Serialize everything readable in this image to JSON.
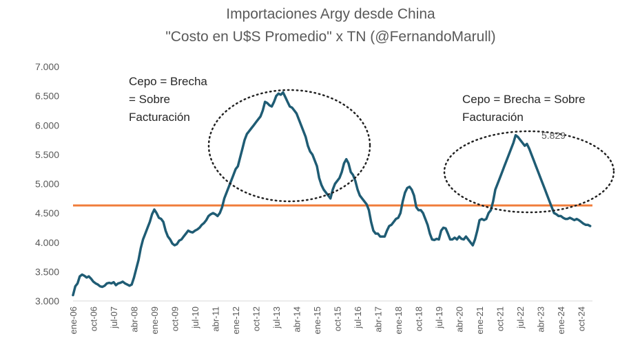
{
  "chart_data": {
    "type": "line",
    "title_line1": "Importaciones  Argy desde China",
    "title_line2": "\"Costo en U$S Promedio\" x TN (@FernandoMarull)",
    "xlabel": "",
    "ylabel": "",
    "ylim": [
      3000,
      7000
    ],
    "y_ticks": [
      3000,
      3500,
      4000,
      4500,
      5000,
      5500,
      6000,
      6500,
      7000
    ],
    "y_tick_labels": [
      "3.000",
      "3.500",
      "4.000",
      "4.500",
      "5.000",
      "5.500",
      "6.000",
      "6.500",
      "7.000"
    ],
    "x_tick_labels": [
      "ene-06",
      "oct-06",
      "jul-07",
      "abr-08",
      "ene-09",
      "oct-09",
      "jul-10",
      "abr-11",
      "ene-12",
      "oct-12",
      "jul-13",
      "abr-14",
      "ene-15",
      "oct-15",
      "jul-16",
      "abr-17",
      "ene-18",
      "oct-18",
      "jul-19",
      "abr-20",
      "ene-21",
      "oct-21",
      "jul-22",
      "abr-23",
      "ene-24",
      "oct-24"
    ],
    "x_start": "2006-01",
    "x_end": "2025-03",
    "grid": false,
    "legend": "none",
    "colors": {
      "series": "#1f5c74",
      "reference": "#f07c3a",
      "text": "#595959"
    },
    "series": [
      {
        "points": [
          [
            "2006-01",
            3100
          ],
          [
            "2006-02",
            3250
          ],
          [
            "2006-03",
            3300
          ],
          [
            "2006-04",
            3420
          ],
          [
            "2006-05",
            3450
          ],
          [
            "2006-06",
            3430
          ],
          [
            "2006-07",
            3400
          ],
          [
            "2006-08",
            3420
          ],
          [
            "2006-09",
            3380
          ],
          [
            "2006-10",
            3330
          ],
          [
            "2006-11",
            3300
          ],
          [
            "2006-12",
            3280
          ],
          [
            "2007-01",
            3250
          ],
          [
            "2007-02",
            3240
          ],
          [
            "2007-03",
            3260
          ],
          [
            "2007-04",
            3300
          ],
          [
            "2007-05",
            3310
          ],
          [
            "2007-06",
            3300
          ],
          [
            "2007-07",
            3320
          ],
          [
            "2007-08",
            3270
          ],
          [
            "2007-09",
            3300
          ],
          [
            "2007-10",
            3310
          ],
          [
            "2007-11",
            3330
          ],
          [
            "2007-12",
            3300
          ],
          [
            "2008-01",
            3280
          ],
          [
            "2008-02",
            3260
          ],
          [
            "2008-03",
            3280
          ],
          [
            "2008-04",
            3400
          ],
          [
            "2008-05",
            3550
          ],
          [
            "2008-06",
            3700
          ],
          [
            "2008-07",
            3900
          ],
          [
            "2008-08",
            4050
          ],
          [
            "2008-09",
            4150
          ],
          [
            "2008-10",
            4250
          ],
          [
            "2008-11",
            4350
          ],
          [
            "2008-12",
            4480
          ],
          [
            "2009-01",
            4560
          ],
          [
            "2009-02",
            4500
          ],
          [
            "2009-03",
            4420
          ],
          [
            "2009-04",
            4400
          ],
          [
            "2009-05",
            4350
          ],
          [
            "2009-06",
            4200
          ],
          [
            "2009-07",
            4100
          ],
          [
            "2009-08",
            4050
          ],
          [
            "2009-09",
            3980
          ],
          [
            "2009-10",
            3950
          ],
          [
            "2009-11",
            3970
          ],
          [
            "2009-12",
            4030
          ],
          [
            "2010-01",
            4050
          ],
          [
            "2010-02",
            4100
          ],
          [
            "2010-03",
            4150
          ],
          [
            "2010-04",
            4200
          ],
          [
            "2010-05",
            4180
          ],
          [
            "2010-06",
            4170
          ],
          [
            "2010-07",
            4200
          ],
          [
            "2010-08",
            4220
          ],
          [
            "2010-09",
            4250
          ],
          [
            "2010-10",
            4300
          ],
          [
            "2010-11",
            4330
          ],
          [
            "2010-12",
            4380
          ],
          [
            "2011-01",
            4450
          ],
          [
            "2011-02",
            4480
          ],
          [
            "2011-03",
            4500
          ],
          [
            "2011-04",
            4480
          ],
          [
            "2011-05",
            4450
          ],
          [
            "2011-06",
            4500
          ],
          [
            "2011-07",
            4600
          ],
          [
            "2011-08",
            4750
          ],
          [
            "2011-09",
            4850
          ],
          [
            "2011-10",
            4950
          ],
          [
            "2011-11",
            5050
          ],
          [
            "2011-12",
            5150
          ],
          [
            "2012-01",
            5250
          ],
          [
            "2012-02",
            5300
          ],
          [
            "2012-03",
            5450
          ],
          [
            "2012-04",
            5600
          ],
          [
            "2012-05",
            5750
          ],
          [
            "2012-06",
            5850
          ],
          [
            "2012-07",
            5900
          ],
          [
            "2012-08",
            5950
          ],
          [
            "2012-09",
            6000
          ],
          [
            "2012-10",
            6050
          ],
          [
            "2012-11",
            6100
          ],
          [
            "2012-12",
            6150
          ],
          [
            "2013-01",
            6250
          ],
          [
            "2013-02",
            6400
          ],
          [
            "2013-03",
            6380
          ],
          [
            "2013-04",
            6340
          ],
          [
            "2013-05",
            6320
          ],
          [
            "2013-06",
            6400
          ],
          [
            "2013-07",
            6500
          ],
          [
            "2013-08",
            6540
          ],
          [
            "2013-09",
            6520
          ],
          [
            "2013-10",
            6560
          ],
          [
            "2013-11",
            6480
          ],
          [
            "2013-12",
            6400
          ],
          [
            "2014-01",
            6320
          ],
          [
            "2014-02",
            6300
          ],
          [
            "2014-03",
            6250
          ],
          [
            "2014-04",
            6200
          ],
          [
            "2014-05",
            6100
          ],
          [
            "2014-06",
            6000
          ],
          [
            "2014-07",
            5900
          ],
          [
            "2014-08",
            5800
          ],
          [
            "2014-09",
            5650
          ],
          [
            "2014-10",
            5550
          ],
          [
            "2014-11",
            5500
          ],
          [
            "2014-12",
            5400
          ],
          [
            "2015-01",
            5300
          ],
          [
            "2015-02",
            5100
          ],
          [
            "2015-03",
            4980
          ],
          [
            "2015-04",
            4900
          ],
          [
            "2015-05",
            4850
          ],
          [
            "2015-06",
            4800
          ],
          [
            "2015-07",
            4750
          ],
          [
            "2015-08",
            4900
          ],
          [
            "2015-09",
            5000
          ],
          [
            "2015-10",
            5050
          ],
          [
            "2015-11",
            5100
          ],
          [
            "2015-12",
            5200
          ],
          [
            "2016-01",
            5350
          ],
          [
            "2016-02",
            5420
          ],
          [
            "2016-03",
            5350
          ],
          [
            "2016-04",
            5200
          ],
          [
            "2016-05",
            5150
          ],
          [
            "2016-06",
            5050
          ],
          [
            "2016-07",
            4900
          ],
          [
            "2016-08",
            4800
          ],
          [
            "2016-09",
            4750
          ],
          [
            "2016-10",
            4700
          ],
          [
            "2016-11",
            4650
          ],
          [
            "2016-12",
            4550
          ],
          [
            "2017-01",
            4350
          ],
          [
            "2017-02",
            4200
          ],
          [
            "2017-03",
            4150
          ],
          [
            "2017-04",
            4150
          ],
          [
            "2017-05",
            4100
          ],
          [
            "2017-06",
            4100
          ],
          [
            "2017-07",
            4100
          ],
          [
            "2017-08",
            4200
          ],
          [
            "2017-09",
            4280
          ],
          [
            "2017-10",
            4300
          ],
          [
            "2017-11",
            4350
          ],
          [
            "2017-12",
            4400
          ],
          [
            "2018-01",
            4420
          ],
          [
            "2018-02",
            4500
          ],
          [
            "2018-03",
            4700
          ],
          [
            "2018-04",
            4850
          ],
          [
            "2018-05",
            4930
          ],
          [
            "2018-06",
            4950
          ],
          [
            "2018-07",
            4900
          ],
          [
            "2018-08",
            4800
          ],
          [
            "2018-09",
            4600
          ],
          [
            "2018-10",
            4550
          ],
          [
            "2018-11",
            4550
          ],
          [
            "2018-12",
            4500
          ],
          [
            "2019-01",
            4400
          ],
          [
            "2019-02",
            4300
          ],
          [
            "2019-03",
            4150
          ],
          [
            "2019-04",
            4050
          ],
          [
            "2019-05",
            4040
          ],
          [
            "2019-06",
            4060
          ],
          [
            "2019-07",
            4050
          ],
          [
            "2019-08",
            4200
          ],
          [
            "2019-09",
            4250
          ],
          [
            "2019-10",
            4240
          ],
          [
            "2019-11",
            4150
          ],
          [
            "2019-12",
            4050
          ],
          [
            "2020-01",
            4050
          ],
          [
            "2020-02",
            4080
          ],
          [
            "2020-03",
            4050
          ],
          [
            "2020-04",
            4100
          ],
          [
            "2020-05",
            4060
          ],
          [
            "2020-06",
            4050
          ],
          [
            "2020-07",
            4100
          ],
          [
            "2020-08",
            4050
          ],
          [
            "2020-09",
            4000
          ],
          [
            "2020-10",
            3950
          ],
          [
            "2020-11",
            4050
          ],
          [
            "2020-12",
            4200
          ],
          [
            "2021-01",
            4380
          ],
          [
            "2021-02",
            4400
          ],
          [
            "2021-03",
            4380
          ],
          [
            "2021-04",
            4400
          ],
          [
            "2021-05",
            4500
          ],
          [
            "2021-06",
            4550
          ],
          [
            "2021-07",
            4700
          ],
          [
            "2021-08",
            4900
          ],
          [
            "2021-09",
            5000
          ],
          [
            "2021-10",
            5100
          ],
          [
            "2021-11",
            5200
          ],
          [
            "2021-12",
            5300
          ],
          [
            "2022-01",
            5400
          ],
          [
            "2022-02",
            5500
          ],
          [
            "2022-03",
            5600
          ],
          [
            "2022-04",
            5700
          ],
          [
            "2022-05",
            5829
          ],
          [
            "2022-06",
            5800
          ],
          [
            "2022-07",
            5750
          ],
          [
            "2022-08",
            5700
          ],
          [
            "2022-09",
            5650
          ],
          [
            "2022-10",
            5680
          ],
          [
            "2022-11",
            5600
          ],
          [
            "2022-12",
            5500
          ],
          [
            "2023-01",
            5400
          ],
          [
            "2023-02",
            5300
          ],
          [
            "2023-03",
            5200
          ],
          [
            "2023-04",
            5100
          ],
          [
            "2023-05",
            5000
          ],
          [
            "2023-06",
            4900
          ],
          [
            "2023-07",
            4800
          ],
          [
            "2023-08",
            4700
          ],
          [
            "2023-09",
            4600
          ],
          [
            "2023-10",
            4500
          ],
          [
            "2023-11",
            4480
          ],
          [
            "2023-12",
            4450
          ],
          [
            "2024-01",
            4450
          ],
          [
            "2024-02",
            4420
          ],
          [
            "2024-03",
            4400
          ],
          [
            "2024-04",
            4400
          ],
          [
            "2024-05",
            4420
          ],
          [
            "2024-06",
            4400
          ],
          [
            "2024-07",
            4380
          ],
          [
            "2024-08",
            4400
          ],
          [
            "2024-09",
            4380
          ],
          [
            "2024-10",
            4350
          ],
          [
            "2024-11",
            4320
          ],
          [
            "2024-12",
            4300
          ],
          [
            "2025-01",
            4300
          ],
          [
            "2025-02",
            4280
          ]
        ]
      }
    ],
    "reference_line": {
      "value": 4630,
      "color": "#f07c3a"
    },
    "annotations": [
      {
        "text_lines": [
          "Cepo  = Brecha",
          "= Sobre",
          "Facturación"
        ]
      },
      {
        "text_lines": [
          "Cepo  = Brecha = Sobre",
          "Facturación"
        ]
      },
      {
        "text": "5.829"
      }
    ]
  }
}
